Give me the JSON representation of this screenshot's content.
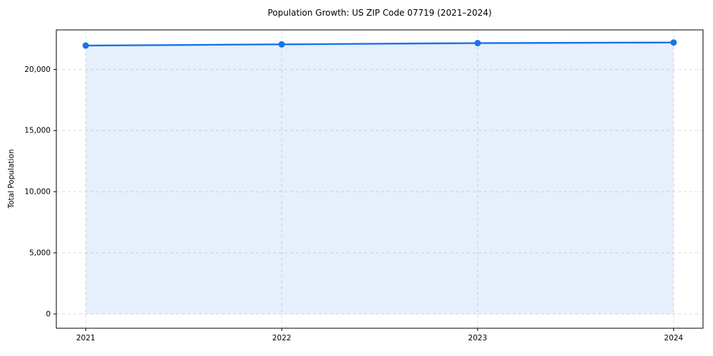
{
  "chart_data": {
    "type": "area",
    "title": "Population Growth: US ZIP Code 07719 (2021–2024)",
    "xlabel": "",
    "ylabel": "Total Population",
    "x": [
      2021,
      2022,
      2023,
      2024
    ],
    "categories": [
      "2021",
      "2022",
      "2023",
      "2024"
    ],
    "series": [
      {
        "name": "Total Population",
        "values": [
          21950,
          22050,
          22150,
          22200
        ]
      }
    ],
    "fill_to_zero": true,
    "xlim": [
      2020.85,
      2024.15
    ],
    "ylim": [
      -1165,
      23230
    ],
    "yticks": [
      {
        "value": 0,
        "label": "0"
      },
      {
        "value": 5000,
        "label": "5,000"
      },
      {
        "value": 10000,
        "label": "10,000"
      },
      {
        "value": 15000,
        "label": "15,000"
      },
      {
        "value": 20000,
        "label": "20,000"
      }
    ],
    "grid": true,
    "grid_style": "dashed",
    "legend_position": "none",
    "marker": "circle",
    "colors": {
      "line": "#1a73e8",
      "marker": "#1a73e8",
      "fill": "#1a73e8",
      "fill_opacity": 0.11,
      "grid": "#d9d9d9",
      "spine": "#000000",
      "tick_text": "#000000",
      "background": "#ffffff"
    }
  }
}
